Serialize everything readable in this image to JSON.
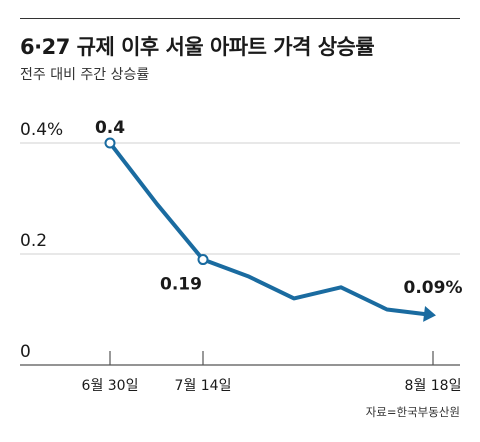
{
  "header": {
    "title": "6·27 규제 이후 서울 아파트 가격 상승률",
    "subtitle": "전주 대비 주간 상승률"
  },
  "source": "자료=한국부동산원",
  "colors": {
    "line": "#1a6ba0",
    "grid": "#d0d0d0",
    "axis": "#555555"
  },
  "chart_data": {
    "type": "line",
    "title": "6·27 규제 이후 서울 아파트 가격 상승률",
    "subtitle": "전주 대비 주간 상승률",
    "ylim": [
      0,
      0.4
    ],
    "y_ticks": [
      "0",
      "0.2",
      "0.4%"
    ],
    "x_ticks": [
      "6월 30일",
      "7월 14일",
      "8월 18일"
    ],
    "grid": true,
    "series": [
      {
        "values": [
          0.4,
          0.29,
          0.19,
          0.16,
          0.12,
          0.14,
          0.1,
          0.09
        ]
      }
    ],
    "point_labels": [
      {
        "index": 0,
        "text": "0.4"
      },
      {
        "index": 2,
        "text": "0.19"
      },
      {
        "index": 7,
        "text": "0.09%"
      }
    ],
    "markers": [
      0,
      2
    ]
  }
}
